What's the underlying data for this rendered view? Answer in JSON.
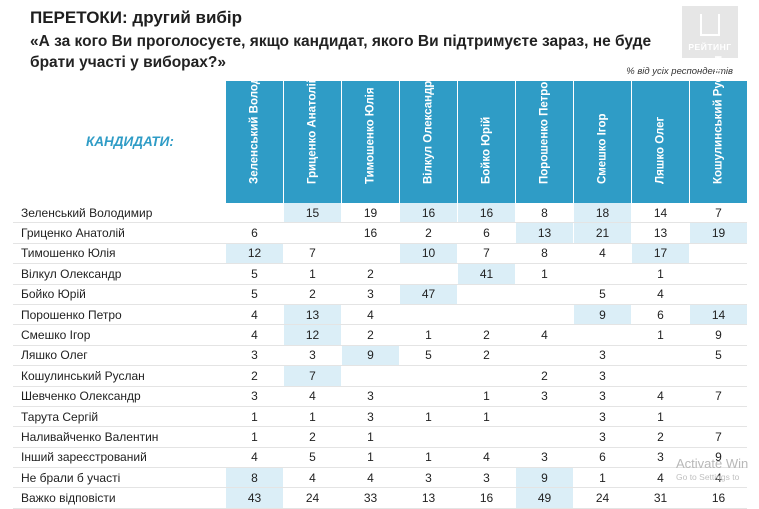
{
  "header": {
    "title": "ПЕРЕТОКИ: другий вибір",
    "question": "«А за кого Ви проголосуєте, якщо кандидат, якого Ви підтримуєте зараз, не буде брати участі у виборах?»",
    "logo_text": "РЕЙТИНГ",
    "note": "% від усіх респондентів",
    "candidates_label": "КАНДИДАТИ:"
  },
  "watermark": {
    "line1": "Activate Win",
    "line2": "Go to Settings to"
  },
  "colors": {
    "header_blue": "#2f9cc6",
    "highlight": "#dbeef7"
  },
  "chart_data": {
    "type": "table",
    "title": "ПЕРЕТОКИ: другий вибір",
    "columns": [
      "Зеленський Володимир",
      "Гриценко Анатолій",
      "Тимошенко Юлія",
      "Вілкул Олександр",
      "Бойко Юрій",
      "Порошенко Петро",
      "Смешко Ігор",
      "Ляшко Олег",
      "Кошулинський Руслан"
    ],
    "rows": [
      {
        "name": "Зеленський Володимир",
        "values": [
          "",
          "15",
          "19",
          "16",
          "16",
          "8",
          "18",
          "14",
          "7"
        ]
      },
      {
        "name": "Гриценко Анатолій",
        "values": [
          "6",
          "",
          "16",
          "2",
          "6",
          "13",
          "21",
          "13",
          "19"
        ]
      },
      {
        "name": "Тимошенко Юлія",
        "values": [
          "12",
          "7",
          "",
          "10",
          "7",
          "8",
          "4",
          "17",
          ""
        ]
      },
      {
        "name": "Вілкул Олександр",
        "values": [
          "5",
          "1",
          "2",
          "",
          "41",
          "1",
          "",
          "1",
          ""
        ]
      },
      {
        "name": "Бойко Юрій",
        "values": [
          "5",
          "2",
          "3",
          "47",
          "",
          "",
          "5",
          "4",
          ""
        ]
      },
      {
        "name": "Порошенко Петро",
        "values": [
          "4",
          "13",
          "4",
          "",
          "",
          "",
          "9",
          "6",
          "14"
        ]
      },
      {
        "name": "Смешко Ігор",
        "values": [
          "4",
          "12",
          "2",
          "1",
          "2",
          "4",
          "",
          "1",
          "9"
        ]
      },
      {
        "name": "Ляшко Олег",
        "values": [
          "3",
          "3",
          "9",
          "5",
          "2",
          "",
          "3",
          "",
          "5"
        ]
      },
      {
        "name": "Кошулинський Руслан",
        "values": [
          "2",
          "7",
          "",
          "",
          "",
          "2",
          "3",
          "",
          ""
        ]
      },
      {
        "name": "Шевченко Олександр",
        "values": [
          "3",
          "4",
          "3",
          "",
          "1",
          "3",
          "3",
          "4",
          "7"
        ]
      },
      {
        "name": "Тарута Сергій",
        "values": [
          "1",
          "1",
          "3",
          "1",
          "1",
          "",
          "3",
          "1",
          ""
        ]
      },
      {
        "name": "Наливайченко Валентин",
        "values": [
          "1",
          "2",
          "1",
          "",
          "",
          "",
          "3",
          "2",
          "7"
        ]
      },
      {
        "name": "Інший зареєстрований",
        "values": [
          "4",
          "5",
          "1",
          "1",
          "4",
          "3",
          "6",
          "3",
          "9"
        ]
      },
      {
        "name": "Не брали б участі",
        "values": [
          "8",
          "4",
          "4",
          "3",
          "3",
          "9",
          "1",
          "4",
          "4"
        ]
      },
      {
        "name": "Важко відповісти",
        "values": [
          "43",
          "24",
          "33",
          "13",
          "16",
          "49",
          "24",
          "31",
          "16"
        ]
      }
    ]
  }
}
